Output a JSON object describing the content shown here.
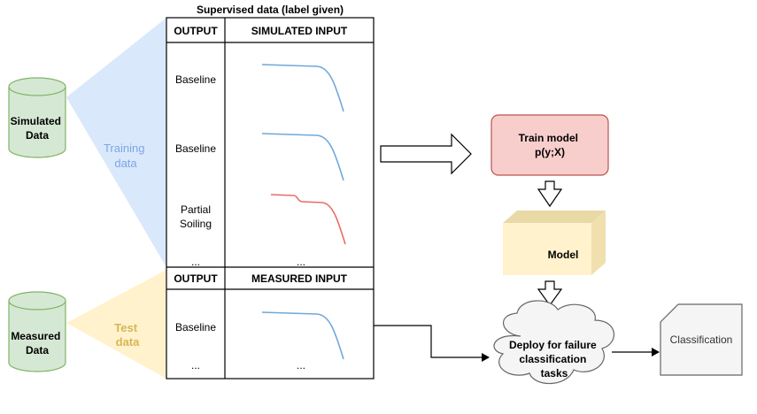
{
  "table": {
    "title": "Supervised data (label given)",
    "train_header": {
      "output": "OUTPUT",
      "input": "SIMULATED INPUT"
    },
    "train_rows": [
      {
        "label_lines": [
          "Baseline"
        ],
        "curve": "baseline",
        "color": "#6fa8dc"
      },
      {
        "label_lines": [
          "Baseline"
        ],
        "curve": "baseline",
        "color": "#6fa8dc"
      },
      {
        "label_lines": [
          "Partial",
          "Soiling"
        ],
        "curve": "soiling",
        "color": "#ea6b66"
      },
      {
        "label_lines": [
          "..."
        ],
        "input_text": "...",
        "curve": "none"
      }
    ],
    "test_header": {
      "output": "OUTPUT",
      "input": "MEASURED INPUT"
    },
    "test_rows": [
      {
        "label_lines": [
          "Baseline"
        ],
        "curve": "baseline",
        "color": "#6fa8dc"
      },
      {
        "label_lines": [
          "..."
        ],
        "input_text": "...",
        "curve": "none"
      }
    ]
  },
  "datastores": {
    "simulated": {
      "lines": [
        "Simulated",
        "Data"
      ],
      "fill": "#d5e8d4",
      "stroke": "#82b366"
    },
    "measured": {
      "lines": [
        "Measured",
        "Data"
      ],
      "fill": "#d5e8d4",
      "stroke": "#82b366"
    }
  },
  "regions": {
    "training": {
      "lines": [
        "Training",
        "data"
      ],
      "color": "#7ea6e0",
      "fill": "#dae8fc"
    },
    "test": {
      "lines": [
        "Test",
        "data"
      ],
      "color": "#d6b656",
      "fill": "#fff2cc"
    }
  },
  "flow": {
    "train_model": {
      "lines": [
        "Train model",
        "p(y;X)"
      ],
      "fill": "#f8cecc",
      "stroke": "#b85450"
    },
    "model": {
      "label": "Model",
      "fill": "#fff2cc"
    },
    "deploy": {
      "lines": [
        "Deploy for failure",
        "classification",
        "tasks"
      ],
      "fill": "#f5f5f5",
      "stroke": "#666666"
    },
    "classification": {
      "label": "Classification",
      "fill": "#f5f5f5",
      "stroke": "#666666"
    }
  }
}
